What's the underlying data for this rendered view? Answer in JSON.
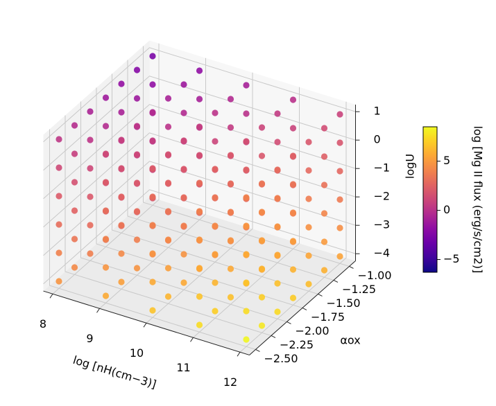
{
  "chart_data": {
    "type": "scatter3d",
    "x_label": "log [nH(cm−3)]",
    "y_label": "αox",
    "z_label": "logU",
    "colorbar_label": "log [Mg II flux (erg/s/cm2)]",
    "cmap": "plasma",
    "xlim": [
      7.8,
      12.2
    ],
    "ylim": [
      -2.6,
      -0.9
    ],
    "zlim": [
      -4.25,
      1.25
    ],
    "clim": [
      -6.3,
      8.5
    ],
    "xticks": [
      8,
      9,
      10,
      11,
      12
    ],
    "yticks": [
      {
        "value": -2.5,
        "label": "−2.50"
      },
      {
        "value": -2.25,
        "label": "−2.25"
      },
      {
        "value": -2,
        "label": "−2.00"
      },
      {
        "value": -1.75,
        "label": "−1.75"
      },
      {
        "value": -1.5,
        "label": "−1.50"
      },
      {
        "value": -1.25,
        "label": "−1.25"
      },
      {
        "value": -1,
        "label": "−1.00"
      }
    ],
    "zticks": [
      {
        "value": -4,
        "label": "−4"
      },
      {
        "value": -3,
        "label": "−3"
      },
      {
        "value": -2,
        "label": "−2"
      },
      {
        "value": -1,
        "label": "−1"
      },
      0,
      1
    ],
    "cticks": [
      {
        "value": -5,
        "label": "−5"
      },
      0,
      5
    ],
    "x": [
      8,
      8,
      8,
      8,
      8,
      8,
      8,
      8,
      8,
      8,
      8,
      8,
      8,
      8,
      8,
      8,
      8,
      8,
      8,
      8,
      8,
      8,
      8,
      8,
      8,
      8,
      8,
      8,
      8,
      8,
      8,
      8,
      8,
      8,
      8,
      8,
      8,
      8,
      8,
      8,
      8,
      8,
      9,
      9,
      9,
      9,
      9,
      9,
      9,
      9,
      9,
      9,
      9,
      9,
      9,
      9,
      9,
      9,
      9,
      9,
      9,
      9,
      9,
      9,
      9,
      9,
      9,
      9,
      9,
      9,
      9,
      9,
      9,
      9,
      9,
      9,
      9,
      9,
      9,
      9,
      9,
      9,
      9,
      9,
      10,
      10,
      10,
      10,
      10,
      10,
      10,
      10,
      10,
      10,
      10,
      10,
      10,
      10,
      10,
      10,
      10,
      10,
      10,
      10,
      10,
      10,
      10,
      10,
      10,
      10,
      10,
      10,
      10,
      10,
      10,
      10,
      10,
      10,
      10,
      10,
      10,
      10,
      10,
      10,
      10,
      10,
      11,
      11,
      11,
      11,
      11,
      11,
      11,
      11,
      11,
      11,
      11,
      11,
      11,
      11,
      11,
      11,
      11,
      11,
      11,
      11,
      11,
      11,
      11,
      11,
      11,
      11,
      11,
      11,
      11,
      11,
      11,
      11,
      11,
      11,
      11,
      11,
      11,
      11,
      11,
      11,
      11,
      11,
      12,
      12,
      12,
      12,
      12,
      12,
      12,
      12,
      12,
      12,
      12,
      12,
      12,
      12,
      12,
      12,
      12,
      12,
      12,
      12,
      12,
      12,
      12,
      12,
      12,
      12,
      12,
      12,
      12,
      12,
      12,
      12,
      12,
      12,
      12,
      12,
      12,
      12,
      12,
      12,
      12,
      12
    ],
    "y": [
      -1,
      -1,
      -1,
      -1,
      -1,
      -1,
      -1.25,
      -1.25,
      -1.25,
      -1.25,
      -1.25,
      -1.25,
      -1.5,
      -1.5,
      -1.5,
      -1.5,
      -1.5,
      -1.5,
      -1.75,
      -1.75,
      -1.75,
      -1.75,
      -1.75,
      -1.75,
      -2,
      -2,
      -2,
      -2,
      -2,
      -2,
      -2.25,
      -2.25,
      -2.25,
      -2.25,
      -2.25,
      -2.25,
      -2.5,
      -2.5,
      -2.5,
      -2.5,
      -2.5,
      -2.5,
      -1,
      -1,
      -1,
      -1,
      -1,
      -1,
      -1.25,
      -1.25,
      -1.25,
      -1.25,
      -1.25,
      -1.25,
      -1.5,
      -1.5,
      -1.5,
      -1.5,
      -1.5,
      -1.5,
      -1.75,
      -1.75,
      -1.75,
      -1.75,
      -1.75,
      -1.75,
      -2,
      -2,
      -2,
      -2,
      -2,
      -2,
      -2.25,
      -2.25,
      -2.25,
      -2.25,
      -2.25,
      -2.25,
      -2.5,
      -2.5,
      -2.5,
      -2.5,
      -2.5,
      -2.5,
      -1,
      -1,
      -1,
      -1,
      -1,
      -1,
      -1.25,
      -1.25,
      -1.25,
      -1.25,
      -1.25,
      -1.25,
      -1.5,
      -1.5,
      -1.5,
      -1.5,
      -1.5,
      -1.5,
      -1.75,
      -1.75,
      -1.75,
      -1.75,
      -1.75,
      -1.75,
      -2,
      -2,
      -2,
      -2,
      -2,
      -2,
      -2.25,
      -2.25,
      -2.25,
      -2.25,
      -2.25,
      -2.25,
      -2.5,
      -2.5,
      -2.5,
      -2.5,
      -2.5,
      -2.5,
      -1,
      -1,
      -1,
      -1,
      -1,
      -1,
      -1.25,
      -1.25,
      -1.25,
      -1.25,
      -1.25,
      -1.25,
      -1.5,
      -1.5,
      -1.5,
      -1.5,
      -1.5,
      -1.5,
      -1.75,
      -1.75,
      -1.75,
      -1.75,
      -1.75,
      -1.75,
      -2,
      -2,
      -2,
      -2,
      -2,
      -2,
      -2.25,
      -2.25,
      -2.25,
      -2.25,
      -2.25,
      -2.25,
      -2.5,
      -2.5,
      -2.5,
      -2.5,
      -2.5,
      -2.5,
      -1,
      -1,
      -1,
      -1,
      -1,
      -1,
      -1.25,
      -1.25,
      -1.25,
      -1.25,
      -1.25,
      -1.25,
      -1.5,
      -1.5,
      -1.5,
      -1.5,
      -1.5,
      -1.5,
      -1.75,
      -1.75,
      -1.75,
      -1.75,
      -1.75,
      -1.75,
      -2,
      -2,
      -2,
      -2,
      -2,
      -2,
      -2.25,
      -2.25,
      -2.25,
      -2.25,
      -2.25,
      -2.25,
      -2.5,
      -2.5,
      -2.5,
      -2.5,
      -2.5,
      -2.5
    ],
    "z": [
      -4,
      -3,
      -2,
      -1,
      0,
      1,
      -4,
      -3,
      -2,
      -1,
      0,
      1,
      -4,
      -3,
      -2,
      -1,
      0,
      1,
      -4,
      -3,
      -2,
      -1,
      0,
      1,
      -4,
      -3,
      -2,
      -1,
      0,
      1,
      -4,
      -3,
      -2,
      -1,
      0,
      1,
      -4,
      -3,
      -2,
      -1,
      0,
      1,
      -4,
      -3,
      -2,
      -1,
      0,
      1,
      -4,
      -3,
      -2,
      -1,
      0,
      1,
      -4,
      -3,
      -2,
      -1,
      0,
      1,
      -4,
      -3,
      -2,
      -1,
      0,
      1,
      -4,
      -3,
      -2,
      -1,
      0,
      1,
      -4,
      -3,
      -2,
      -1,
      0,
      1,
      -4,
      -3,
      -2,
      -1,
      0,
      1,
      -4,
      -3,
      -2,
      -1,
      0,
      1,
      -4,
      -3,
      -2,
      -1,
      0,
      1,
      -4,
      -3,
      -2,
      -1,
      0,
      1,
      -4,
      -3,
      -2,
      -1,
      0,
      1,
      -4,
      -3,
      -2,
      -1,
      0,
      1,
      -4,
      -3,
      -2,
      -1,
      0,
      1,
      -4,
      -3,
      -2,
      -1,
      0,
      1,
      -4,
      -3,
      -2,
      -1,
      0,
      1,
      -4,
      -3,
      -2,
      -1,
      0,
      1,
      -4,
      -3,
      -2,
      -1,
      0,
      1,
      -4,
      -3,
      -2,
      -1,
      0,
      1,
      -4,
      -3,
      -2,
      -1,
      0,
      1,
      -4,
      -3,
      -2,
      -1,
      0,
      1,
      -4,
      -3,
      -2,
      -1,
      0,
      1,
      -4,
      -3,
      -2,
      -1,
      0,
      1,
      -4,
      -3,
      -2,
      -1,
      0,
      1,
      -4,
      -3,
      -2,
      -1,
      0,
      1,
      -4,
      -3,
      -2,
      -1,
      0,
      1,
      -4,
      -3,
      -2,
      -1,
      0,
      1,
      -4,
      -3,
      -2,
      -1,
      0,
      1,
      -4,
      -3,
      -2,
      -1,
      0,
      1
    ],
    "values": [
      1.8,
      0.9,
      0,
      -0.9,
      -1.8,
      -2.7,
      2.3,
      1.4,
      0.5,
      -0.4,
      -1.3,
      -2.2,
      2.8,
      1.9,
      1,
      0.1,
      -0.8,
      -1.7,
      3.3,
      2.4,
      1.5,
      0.6,
      -0.3,
      -1.2,
      3.8,
      2.9,
      2,
      1.1,
      0.2,
      -0.7,
      4.3,
      3.4,
      2.5,
      1.6,
      0.7,
      -0.2,
      4.8,
      3.9,
      3,
      2.1,
      1.2,
      0.3,
      2.7,
      1.8,
      0.9,
      0,
      -0.9,
      -1.8,
      3.2,
      2.3,
      1.4,
      0.5,
      -0.4,
      -1.3,
      3.7,
      2.8,
      1.9,
      1,
      0.1,
      -0.8,
      4.2,
      3.3,
      2.4,
      1.5,
      0.6,
      -0.3,
      4.7,
      3.8,
      2.9,
      2,
      1.1,
      0.2,
      5.2,
      4.3,
      3.4,
      2.5,
      1.6,
      0.7,
      5.7,
      4.8,
      3.9,
      3,
      2.1,
      1.2,
      3.6,
      2.7,
      1.8,
      0.9,
      0,
      -0.9,
      4.1,
      3.2,
      2.3,
      1.4,
      0.5,
      -0.4,
      4.6,
      3.7,
      2.8,
      1.9,
      1,
      0.1,
      5.1,
      4.2,
      3.3,
      2.4,
      1.5,
      0.6,
      5.6,
      4.7,
      3.8,
      2.9,
      2,
      1.1,
      6.1,
      5.2,
      4.3,
      3.4,
      2.5,
      1.6,
      6.6,
      5.7,
      4.8,
      3.9,
      3,
      2.1,
      4.5,
      3.6,
      2.7,
      1.8,
      0.9,
      0,
      5,
      4.1,
      3.2,
      2.3,
      1.4,
      0.5,
      5.5,
      4.6,
      3.7,
      2.8,
      1.9,
      1,
      6,
      5.1,
      4.2,
      3.3,
      2.4,
      1.5,
      6.5,
      5.6,
      4.7,
      3.8,
      2.9,
      2,
      7,
      6.1,
      5.2,
      4.3,
      3.4,
      2.5,
      7.5,
      6.6,
      5.7,
      4.8,
      3.9,
      3,
      5.4,
      4.5,
      3.6,
      2.7,
      1.8,
      0.9,
      5.9,
      5,
      4.1,
      3.2,
      2.3,
      1.4,
      6.4,
      5.5,
      4.6,
      3.7,
      2.8,
      1.9,
      6.9,
      6,
      5.1,
      4.2,
      3.3,
      2.4,
      7.4,
      6.5,
      5.6,
      4.7,
      3.8,
      2.9,
      7.9,
      7,
      6.1,
      5.2,
      4.3,
      3.4,
      8.4,
      7.5,
      6.6,
      5.7,
      4.8,
      3.9
    ]
  }
}
